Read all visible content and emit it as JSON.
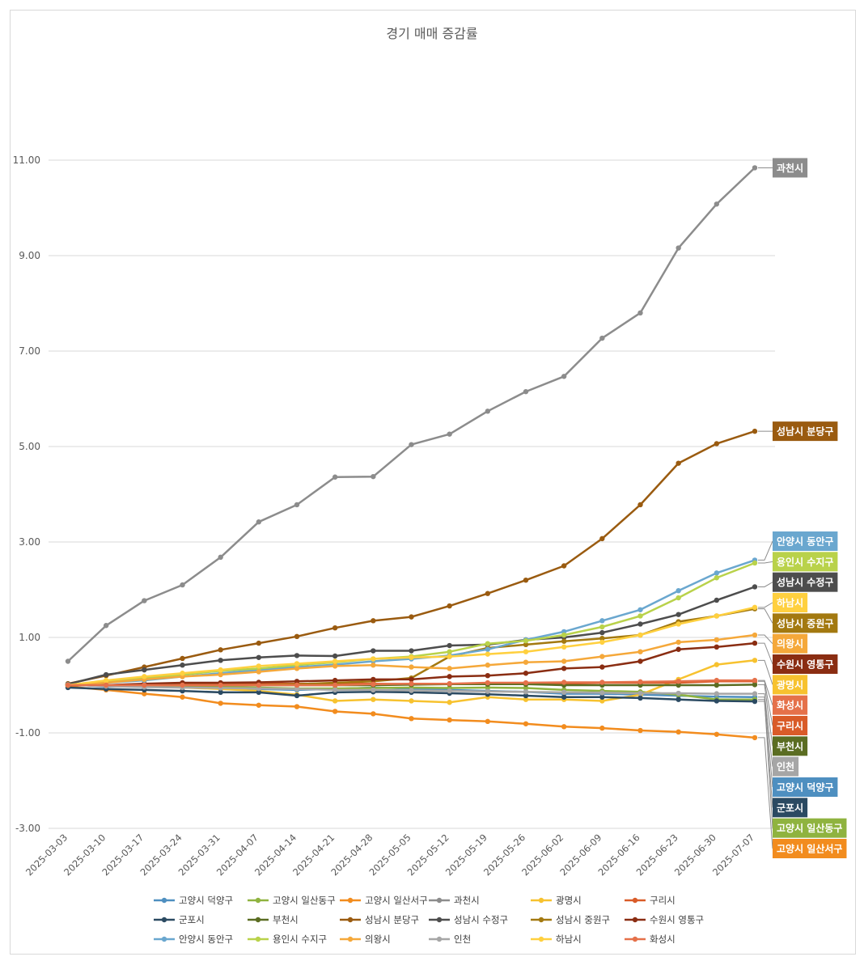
{
  "chart_data": {
    "type": "line",
    "title": "경기 매매 증감률",
    "xlabel": "",
    "ylabel": "",
    "ylim": [
      -3,
      13
    ],
    "yticks": [
      -3,
      -1,
      1,
      3,
      5,
      7,
      9,
      11
    ],
    "ytick_labels": [
      "-3.00",
      "-1.00",
      "1.00",
      "3.00",
      "5.00",
      "7.00",
      "9.00",
      "11.00"
    ],
    "grid": true,
    "legend": "bottom",
    "categories": [
      "2025-03-03",
      "2025-03-10",
      "2025-03-17",
      "2025-03-24",
      "2025-03-31",
      "2025-04-07",
      "2025-04-14",
      "2025-04-21",
      "2025-04-28",
      "2025-05-05",
      "2025-05-12",
      "2025-05-19",
      "2025-05-26",
      "2025-06-02",
      "2025-06-09",
      "2025-06-16",
      "2025-06-23",
      "2025-06-30",
      "2025-07-07"
    ],
    "series": [
      {
        "name": "고양시 덕양구",
        "color": "#4e8fc0",
        "values": [
          0.02,
          -0.03,
          0,
          -0.02,
          -0.05,
          -0.08,
          -0.1,
          -0.08,
          -0.05,
          -0.07,
          -0.1,
          -0.12,
          -0.14,
          -0.18,
          -0.18,
          -0.2,
          -0.22,
          -0.24,
          -0.25
        ]
      },
      {
        "name": "고양시 일산동구",
        "color": "#8fb33f",
        "values": [
          0.01,
          -0.01,
          -0.02,
          -0.03,
          -0.04,
          -0.05,
          -0.07,
          -0.07,
          -0.06,
          -0.05,
          -0.06,
          -0.05,
          -0.06,
          -0.1,
          -0.12,
          -0.14,
          -0.2,
          -0.3,
          -0.3
        ]
      },
      {
        "name": "고양시 일산서구",
        "color": "#f28c1e",
        "values": [
          -0.03,
          -0.1,
          -0.18,
          -0.25,
          -0.38,
          -0.42,
          -0.45,
          -0.55,
          -0.6,
          -0.7,
          -0.73,
          -0.76,
          -0.81,
          -0.87,
          -0.9,
          -0.95,
          -0.98,
          -1.03,
          -1.1
        ]
      },
      {
        "name": "과천시",
        "color": "#8c8c8c",
        "values": [
          0.5,
          1.25,
          1.77,
          2.1,
          2.68,
          3.42,
          3.78,
          4.36,
          4.37,
          5.04,
          5.26,
          5.74,
          6.15,
          6.47,
          7.27,
          7.8,
          9.16,
          10.08,
          10.84
        ]
      },
      {
        "name": "광명시",
        "color": "#f7c22f",
        "values": [
          0.03,
          0,
          -0.03,
          -0.05,
          -0.08,
          -0.12,
          -0.2,
          -0.33,
          -0.3,
          -0.33,
          -0.36,
          -0.25,
          -0.3,
          -0.3,
          -0.33,
          -0.2,
          0.12,
          0.43,
          0.52
        ]
      },
      {
        "name": "구리시",
        "color": "#d95b28",
        "values": [
          0,
          0,
          0.02,
          0.02,
          0.02,
          0.03,
          0.03,
          0.03,
          0.03,
          0.02,
          0.03,
          0.03,
          0.03,
          0.03,
          0.05,
          0.05,
          0.05,
          0.08,
          0.08
        ]
      },
      {
        "name": "군포시",
        "color": "#2b4a62",
        "values": [
          -0.05,
          -0.08,
          -0.1,
          -0.12,
          -0.15,
          -0.15,
          -0.22,
          -0.15,
          -0.14,
          -0.15,
          -0.17,
          -0.19,
          -0.22,
          -0.25,
          -0.25,
          -0.27,
          -0.3,
          -0.33,
          -0.34
        ]
      },
      {
        "name": "부천시",
        "color": "#5b6d22",
        "values": [
          0,
          0,
          0,
          0,
          0,
          0,
          0,
          0,
          0,
          0.01,
          0.02,
          0.02,
          0.02,
          0,
          0,
          0,
          0,
          0,
          0.01
        ]
      },
      {
        "name": "성남시 분당구",
        "color": "#9a5b10",
        "values": [
          0.03,
          0.2,
          0.38,
          0.56,
          0.74,
          0.88,
          1.02,
          1.2,
          1.35,
          1.43,
          1.66,
          1.92,
          2.2,
          2.5,
          3.07,
          3.78,
          4.65,
          5.06,
          5.32
        ]
      },
      {
        "name": "성남시 수정구",
        "color": "#4d4d4d",
        "values": [
          0.02,
          0.22,
          0.32,
          0.42,
          0.52,
          0.58,
          0.62,
          0.61,
          0.72,
          0.72,
          0.83,
          0.85,
          0.95,
          1.0,
          1.1,
          1.28,
          1.48,
          1.78,
          2.06
        ]
      },
      {
        "name": "성남시 중원구",
        "color": "#a37910",
        "values": [
          0,
          0,
          0,
          0,
          0,
          0,
          0.02,
          0.05,
          0.08,
          0.15,
          0.6,
          0.78,
          0.85,
          0.92,
          0.98,
          1.05,
          1.33,
          1.45,
          1.6
        ]
      },
      {
        "name": "수원시 영통구",
        "color": "#8a2d12",
        "values": [
          0,
          0,
          0.03,
          0.05,
          0.05,
          0.06,
          0.08,
          0.1,
          0.12,
          0.12,
          0.18,
          0.2,
          0.25,
          0.35,
          0.38,
          0.5,
          0.75,
          0.8,
          0.88
        ]
      },
      {
        "name": "안양시 동안구",
        "color": "#6aa7cf",
        "values": [
          0,
          0.05,
          0.1,
          0.18,
          0.25,
          0.32,
          0.38,
          0.43,
          0.5,
          0.55,
          0.62,
          0.75,
          0.95,
          1.12,
          1.35,
          1.58,
          1.98,
          2.35,
          2.62
        ]
      },
      {
        "name": "용인시 수지구",
        "color": "#b9d24a",
        "values": [
          0,
          0.08,
          0.15,
          0.22,
          0.3,
          0.35,
          0.42,
          0.48,
          0.55,
          0.6,
          0.7,
          0.87,
          0.93,
          1.05,
          1.22,
          1.45,
          1.83,
          2.25,
          2.56
        ]
      },
      {
        "name": "의왕시",
        "color": "#f5a83a",
        "values": [
          0,
          0.05,
          0.12,
          0.18,
          0.22,
          0.28,
          0.35,
          0.4,
          0.42,
          0.38,
          0.35,
          0.42,
          0.48,
          0.5,
          0.6,
          0.7,
          0.9,
          0.95,
          1.05
        ]
      },
      {
        "name": "인천",
        "color": "#a6a6a6",
        "values": [
          0.01,
          -0.02,
          -0.04,
          -0.05,
          -0.06,
          -0.07,
          -0.08,
          -0.1,
          -0.1,
          -0.11,
          -0.12,
          -0.13,
          -0.14,
          -0.15,
          -0.16,
          -0.17,
          -0.17,
          -0.18,
          -0.18
        ]
      },
      {
        "name": "하남시",
        "color": "#ffd03f",
        "values": [
          0,
          0.1,
          0.18,
          0.25,
          0.32,
          0.4,
          0.45,
          0.5,
          0.55,
          0.58,
          0.6,
          0.65,
          0.7,
          0.8,
          0.9,
          1.05,
          1.28,
          1.45,
          1.63
        ]
      },
      {
        "name": "화성시",
        "color": "#e5714a",
        "values": [
          0,
          0,
          0,
          0,
          0,
          0,
          0,
          0,
          0.02,
          0.03,
          0.03,
          0.05,
          0.05,
          0.06,
          0.06,
          0.07,
          0.08,
          0.1,
          0.1
        ]
      }
    ],
    "end_labels": [
      {
        "series": "과천시",
        "label": "과천시"
      },
      {
        "series": "성남시 분당구",
        "label": "성남시 분당구"
      },
      {
        "series": "안양시 동안구",
        "label": "안양시 동안구"
      },
      {
        "series": "용인시 수지구",
        "label": "용인시 수지구"
      },
      {
        "series": "성남시 수정구",
        "label": "성남시 수정구"
      },
      {
        "series": "하남시",
        "label": "하남시"
      },
      {
        "series": "성남시 중원구",
        "label": "성남시 중원구"
      },
      {
        "series": "의왕시",
        "label": "의왕시"
      },
      {
        "series": "수원시 영통구",
        "label": "수원시 영통구"
      },
      {
        "series": "광명시",
        "label": "광명시"
      },
      {
        "series": "화성시",
        "label": "화성시"
      },
      {
        "series": "구리시",
        "label": "구리시"
      },
      {
        "series": "부천시",
        "label": "부천시"
      },
      {
        "series": "인천",
        "label": "인천"
      },
      {
        "series": "고양시 덕양구",
        "label": "고양시 덕양구"
      },
      {
        "series": "군포시",
        "label": "군포시"
      },
      {
        "series": "고양시 일산동구",
        "label": "고양시 일산동구"
      },
      {
        "series": "고양시 일산서구",
        "label": "고양시 일산서구"
      }
    ]
  }
}
